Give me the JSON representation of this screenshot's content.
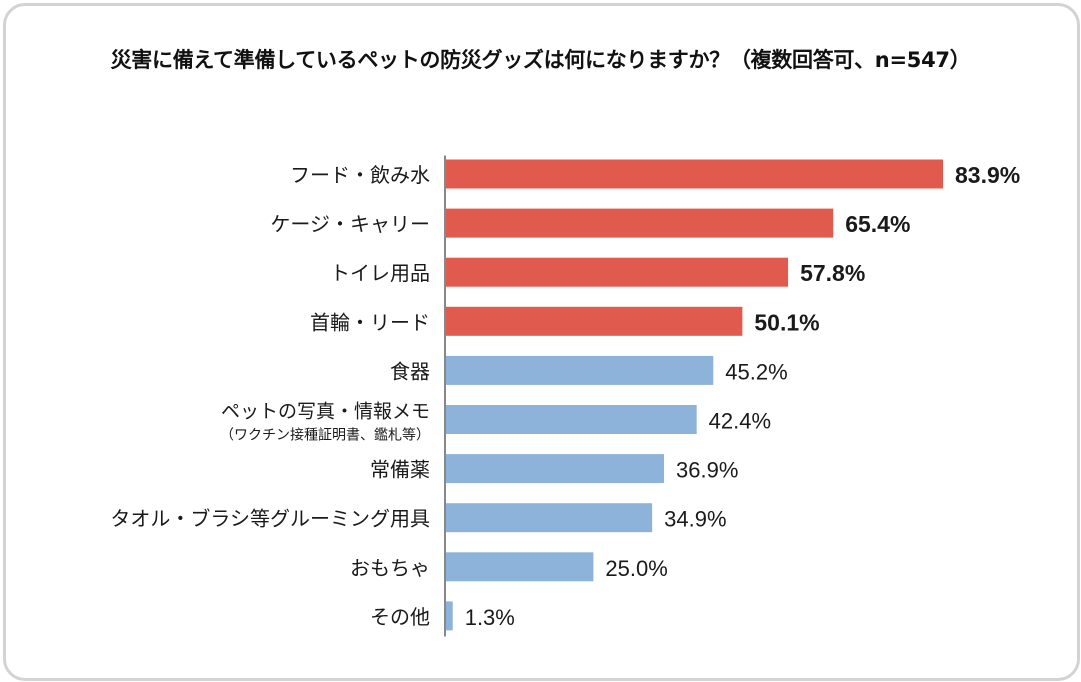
{
  "title": "災害に備えて準備しているペットの防災グッズは何になりますか？（複数回答可、n=547）",
  "colors": {
    "highlight": "#e05a4e",
    "normal": "#8eb3da",
    "axis": "#888888"
  },
  "chart_data": {
    "type": "bar",
    "orientation": "horizontal",
    "title": "災害に備えて準備しているペットの防災グッズは何になりますか？（複数回答可、n=547）",
    "xlim": [
      0,
      100
    ],
    "unit": "%",
    "grid": false,
    "categories": [
      {
        "label": "フード・飲み水",
        "sublabel": "",
        "value": 83.9,
        "value_label": "83.9%",
        "highlight": true
      },
      {
        "label": "ケージ・キャリー",
        "sublabel": "",
        "value": 65.4,
        "value_label": "65.4%",
        "highlight": true
      },
      {
        "label": "トイレ用品",
        "sublabel": "",
        "value": 57.8,
        "value_label": "57.8%",
        "highlight": true
      },
      {
        "label": "首輪・リード",
        "sublabel": "",
        "value": 50.1,
        "value_label": "50.1%",
        "highlight": true
      },
      {
        "label": "食器",
        "sublabel": "",
        "value": 45.2,
        "value_label": "45.2%",
        "highlight": false
      },
      {
        "label": "ペットの写真・情報メモ",
        "sublabel": "（ワクチン接種証明書、鑑札等）",
        "value": 42.4,
        "value_label": "42.4%",
        "highlight": false
      },
      {
        "label": "常備薬",
        "sublabel": "",
        "value": 36.9,
        "value_label": "36.9%",
        "highlight": false
      },
      {
        "label": "タオル・ブラシ等グルーミング用具",
        "sublabel": "",
        "value": 34.9,
        "value_label": "34.9%",
        "highlight": false
      },
      {
        "label": "おもちゃ",
        "sublabel": "",
        "value": 25.0,
        "value_label": "25.0%",
        "highlight": false
      },
      {
        "label": "その他",
        "sublabel": "",
        "value": 1.3,
        "value_label": "1.3%",
        "highlight": false
      }
    ]
  }
}
